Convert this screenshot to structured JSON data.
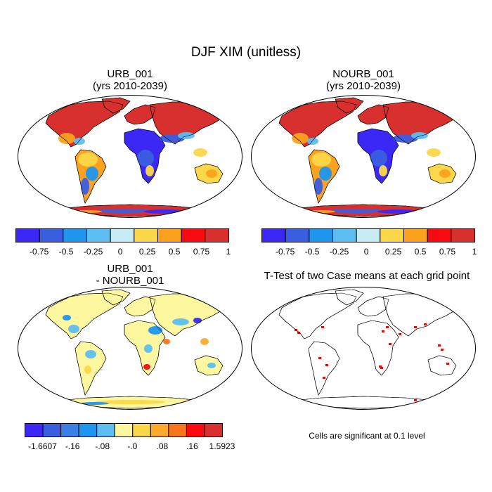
{
  "title": "DJF XIM (unitless)",
  "panels": [
    {
      "id": "urb",
      "title_line1": "URB_001",
      "title_line2": "(yrs 2010-2039)"
    },
    {
      "id": "nourb",
      "title_line1": "NOURB_001",
      "title_line2": "(yrs 2010-2039)"
    },
    {
      "id": "diff",
      "title_line1": "URB_001",
      "title_line2": "- NOURB_001"
    },
    {
      "id": "ttest",
      "title_line1": "T-Test of two Case means at each grid point",
      "title_line2": ""
    }
  ],
  "colorbar_top": {
    "colors": [
      "#3b28f5",
      "#3a5ee0",
      "#1e96f0",
      "#5cbef0",
      "#c8ecf6",
      "#fcd749",
      "#fca21f",
      "#f90a10",
      "#d7302e"
    ],
    "labels": [
      "-0.75",
      "-0.5",
      "-0.25",
      "0",
      "0.25",
      "0.5",
      "0.75",
      "1"
    ]
  },
  "colorbar_diff": {
    "colors": [
      "#3b28f5",
      "#3a5ee0",
      "#3a80e6",
      "#1e96f0",
      "#5cbef0",
      "#fdf7a0",
      "#fcd749",
      "#fcaa2c",
      "#f9771c",
      "#f90a10",
      "#d7302e"
    ],
    "labels": [
      "-1.6607",
      "-.16",
      "-.08",
      "-.0",
      ".08",
      ".16",
      "1.5923"
    ]
  },
  "significance_note": "Cells are significant at 0.1 level",
  "colors": {
    "significant": "#ff0000",
    "coast": "#000000"
  }
}
